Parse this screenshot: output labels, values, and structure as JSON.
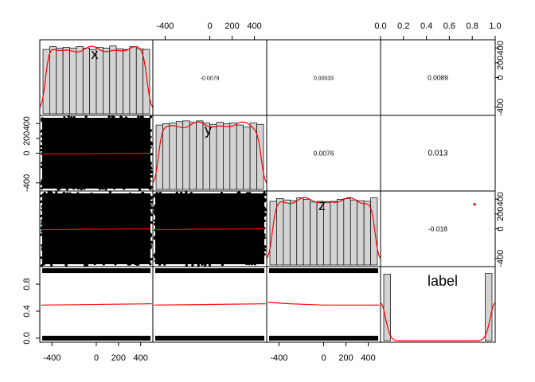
{
  "chart_data": {
    "type": "scatter_matrix",
    "variables": [
      "x",
      "y",
      "z",
      "label"
    ],
    "colors": {
      "hist_fill": "#d3d3d3",
      "density": "#ff0000",
      "smooth": "#ff0000",
      "points": "#000000",
      "axis": "#000000"
    },
    "axes": {
      "x": {
        "range": [
          -510,
          510
        ],
        "ticks": [
          "-400",
          "0",
          "200",
          "400"
        ],
        "tick_values": [
          -400,
          0,
          200,
          400
        ]
      },
      "y": {
        "range": [
          -510,
          510
        ],
        "ticks": [
          "-400",
          "0",
          "200",
          "400"
        ],
        "tick_values": [
          -400,
          0,
          200,
          400
        ]
      },
      "z": {
        "range": [
          -510,
          510
        ],
        "ticks": [
          "-400",
          "0",
          "200",
          "400"
        ],
        "tick_values": [
          -400,
          0,
          200,
          400
        ]
      },
      "label": {
        "range": [
          0,
          1
        ],
        "ticks": [
          "0.0",
          "0.2",
          "0.4",
          "0.6",
          "0.8",
          "1.0"
        ],
        "tick_values": [
          0,
          0.2,
          0.4,
          0.6,
          0.8,
          1.0
        ],
        "left_ticks": [
          "0.0",
          "0.4",
          "0.8"
        ],
        "left_tick_values": [
          0,
          0.4,
          0.8
        ]
      }
    },
    "correlations": [
      {
        "row": 0,
        "col": 1,
        "text": "-0.0079"
      },
      {
        "row": 0,
        "col": 2,
        "text": "0.00033"
      },
      {
        "row": 0,
        "col": 3,
        "text": "0.0089"
      },
      {
        "row": 1,
        "col": 2,
        "text": "0.0076"
      },
      {
        "row": 1,
        "col": 3,
        "text": "0.013"
      },
      {
        "row": 2,
        "col": 3,
        "text": "-0.018"
      }
    ],
    "histograms": {
      "x": [
        0.93,
        0.97,
        0.95,
        0.96,
        0.95,
        0.97,
        0.95,
        0.93,
        0.96,
        0.95,
        0.98,
        0.94,
        0.93,
        0.97,
        0.94,
        0.93
      ],
      "y": [
        0.93,
        0.95,
        0.96,
        0.98,
        0.99,
        0.97,
        0.99,
        0.96,
        0.94,
        0.97,
        0.95,
        0.96,
        0.93,
        0.9,
        0.96,
        0.94
      ],
      "z": [
        0.92,
        0.96,
        0.94,
        0.93,
        0.97,
        0.95,
        0.91,
        0.92,
        0.9,
        0.92,
        0.95,
        0.96,
        0.94,
        0.93,
        0.92,
        0.97
      ],
      "label": [
        0.96,
        0,
        0,
        0,
        0,
        0,
        0,
        0,
        0,
        0,
        0,
        0,
        0,
        0,
        0,
        0.97
      ]
    },
    "smooth_lines": {
      "label_vs_x": {
        "x": [
          -500,
          500
        ],
        "y": [
          0.49,
          0.51
        ]
      },
      "label_vs_y": {
        "x": [
          -500,
          500
        ],
        "y": [
          0.49,
          0.51
        ]
      },
      "label_vs_z": {
        "x": [
          -500,
          -300,
          0,
          500
        ],
        "y": [
          0.53,
          0.51,
          0.49,
          0.49
        ]
      }
    },
    "outlier_point": {
      "x": 0.82,
      "y": 330
    }
  }
}
